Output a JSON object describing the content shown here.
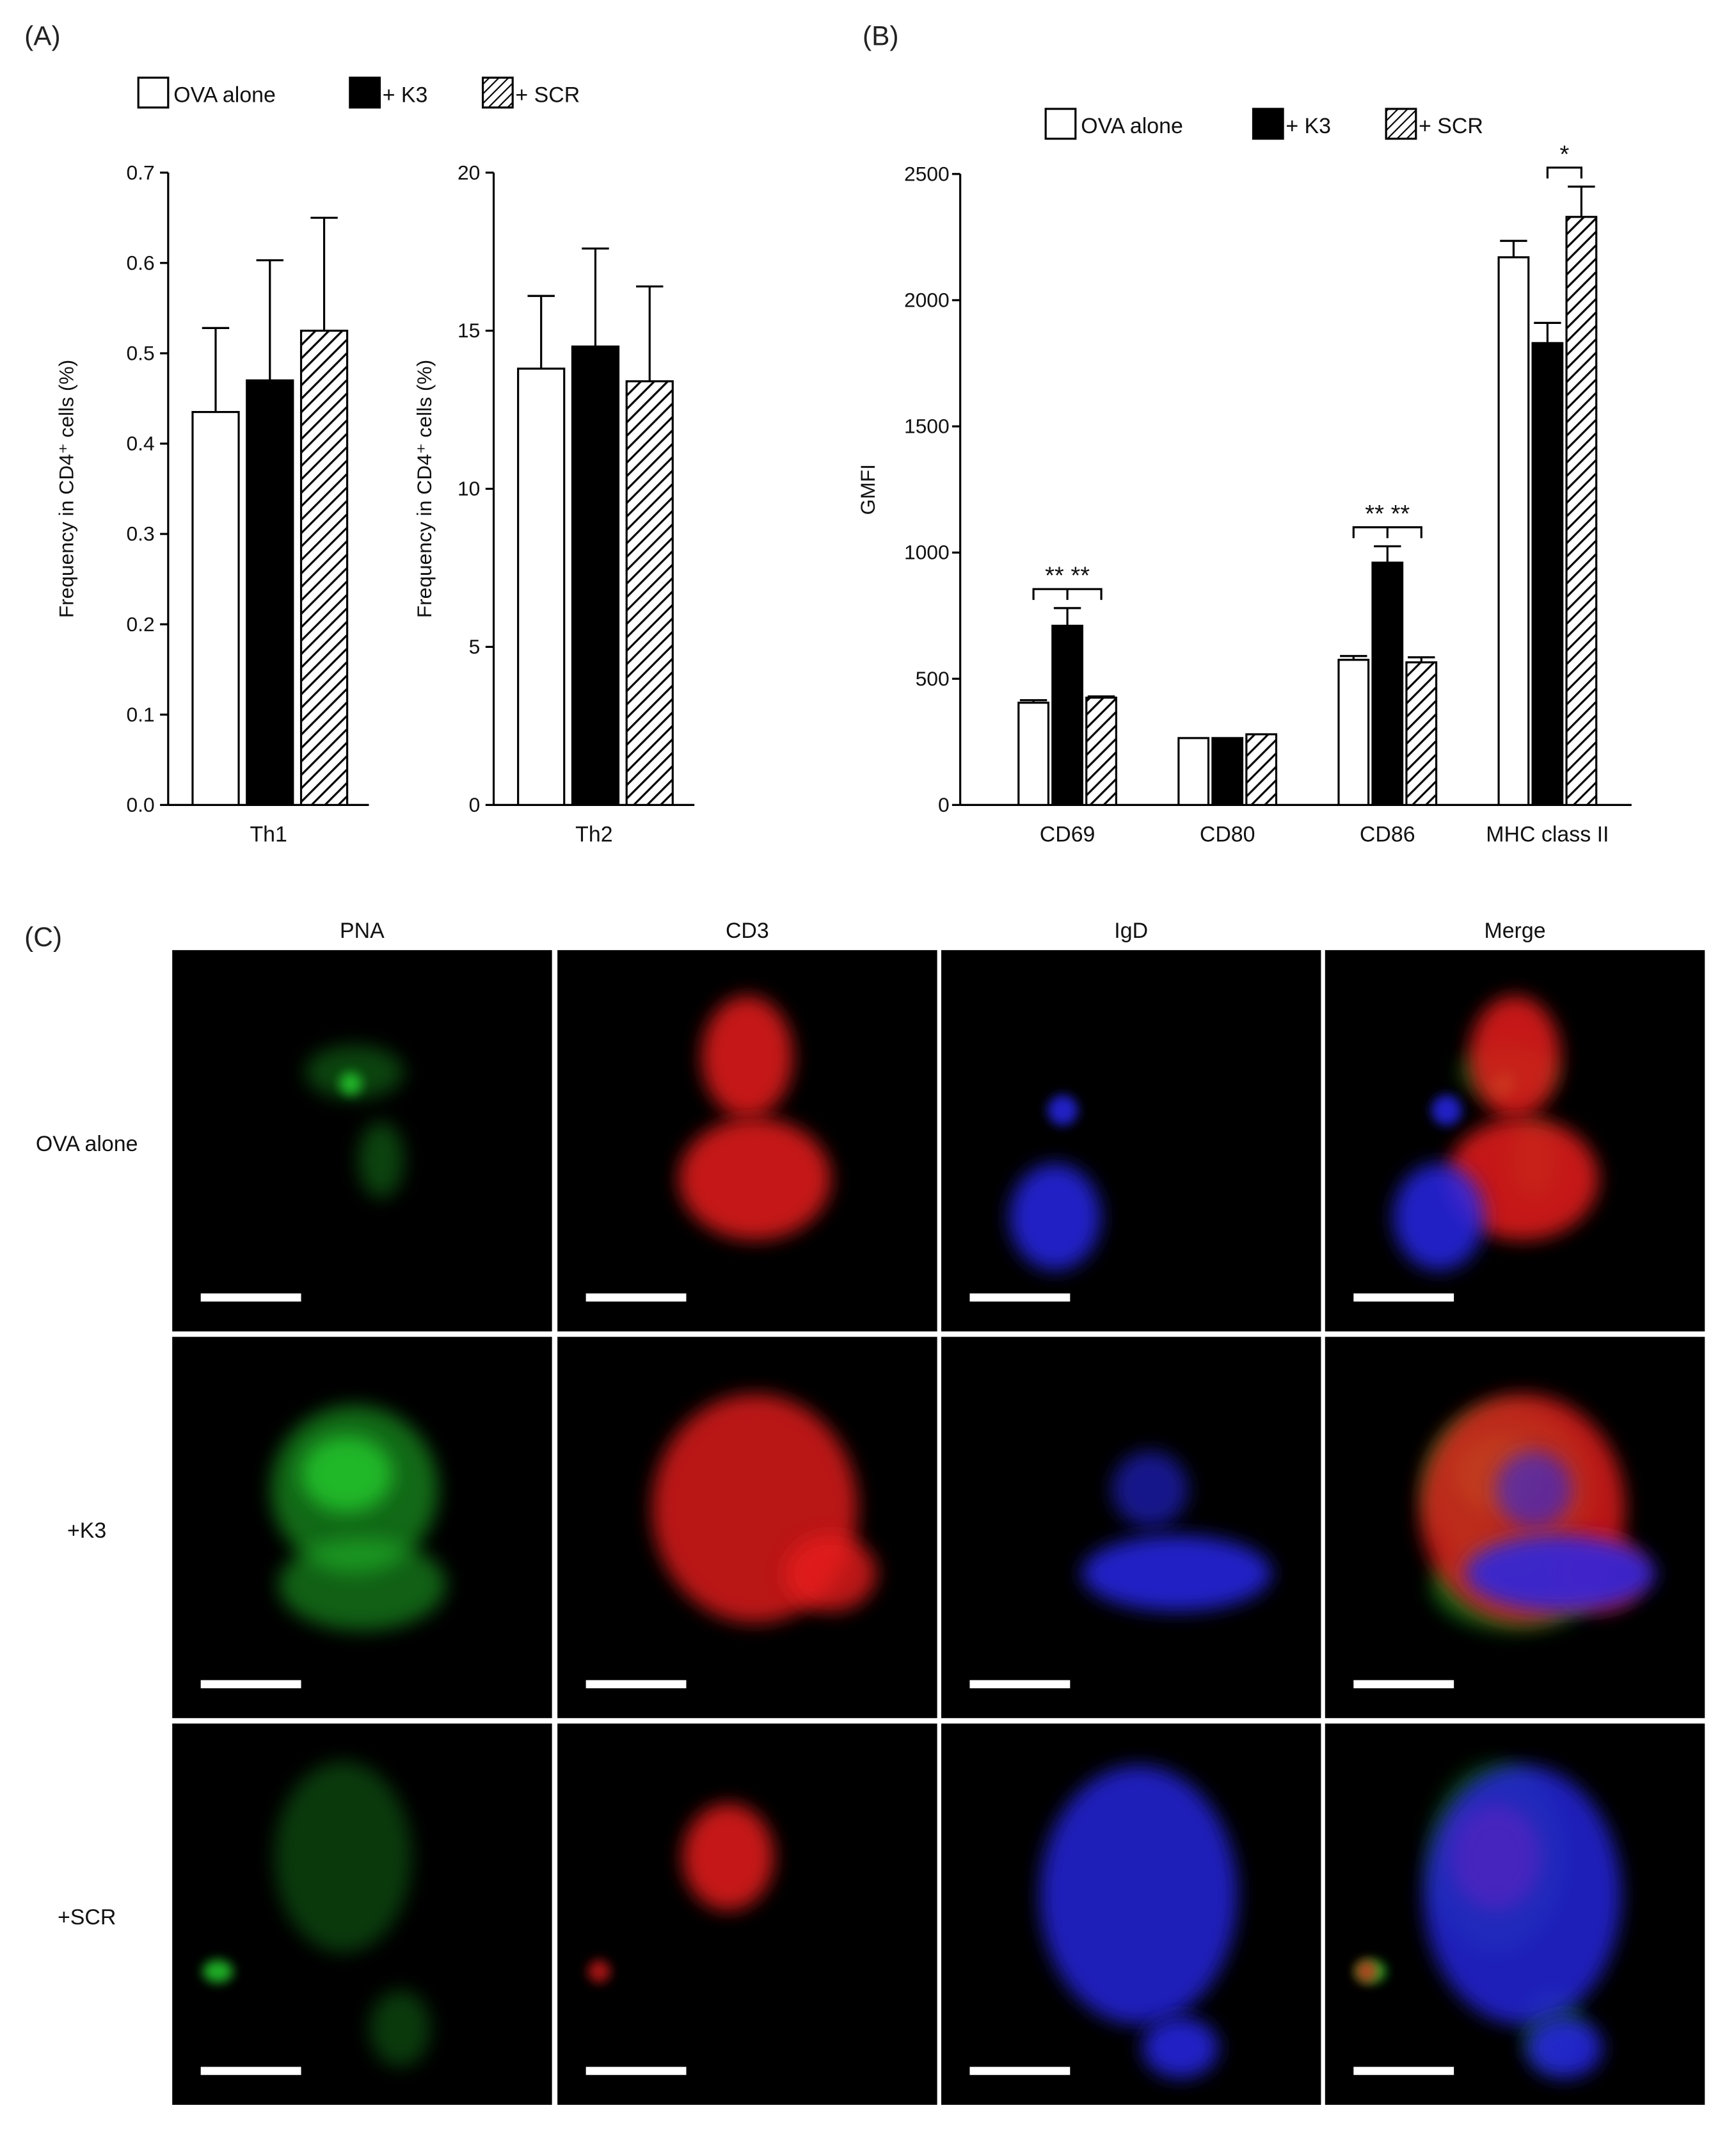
{
  "panels": {
    "a": {
      "label": "(A)"
    },
    "b": {
      "label": "(B)"
    },
    "c": {
      "label": "(C)"
    }
  },
  "legend": {
    "items": [
      "OVA alone",
      "+ K3",
      "+ SCR"
    ]
  },
  "colors": {
    "ova_alone": "#ffffff",
    "k3": "#000000",
    "scr_hatch": "#000000",
    "axis": "#000000",
    "panel_bg": "#000000",
    "pna": "#22c02a",
    "cd3": "#e81c1c",
    "igd": "#2626e8"
  },
  "chart_data": [
    {
      "type": "bar",
      "categories": [
        "Th1"
      ],
      "series": [
        {
          "name": "OVA alone",
          "values": [
            0.435
          ],
          "error": [
            0.093
          ]
        },
        {
          "name": "+ K3",
          "values": [
            0.47
          ],
          "error": [
            0.133
          ]
        },
        {
          "name": "+ SCR",
          "values": [
            0.525
          ],
          "error": [
            0.125
          ]
        }
      ],
      "ylabel": "Frequency in CD4⁺ cells (%)",
      "ylim": [
        0,
        0.7
      ],
      "yticks": [
        0.0,
        0.1,
        0.2,
        0.3,
        0.4,
        0.5,
        0.6,
        0.7
      ],
      "ytick_labels": [
        "0.0",
        "0.1",
        "0.2",
        "0.3",
        "0.4",
        "0.5",
        "0.6",
        "0.7"
      ],
      "grid": false
    },
    {
      "type": "bar",
      "categories": [
        "Th2"
      ],
      "series": [
        {
          "name": "OVA alone",
          "values": [
            13.8
          ],
          "error": [
            2.3
          ]
        },
        {
          "name": "+ K3",
          "values": [
            14.5
          ],
          "error": [
            3.1
          ]
        },
        {
          "name": "+ SCR",
          "values": [
            13.4
          ],
          "error": [
            3.0
          ]
        }
      ],
      "ylabel": "Frequency in CD4⁺ cells (%)",
      "ylim": [
        0,
        20
      ],
      "yticks": [
        0,
        5,
        10,
        15,
        20
      ],
      "ytick_labels": [
        "0",
        "5",
        "10",
        "15",
        "20"
      ],
      "grid": false
    },
    {
      "type": "bar",
      "categories": [
        "CD69",
        "CD80",
        "CD86",
        "MHC class II"
      ],
      "series": [
        {
          "name": "OVA alone",
          "values": [
            405,
            265,
            575,
            2170
          ],
          "error": [
            10,
            0,
            15,
            65
          ]
        },
        {
          "name": "+ K3",
          "values": [
            710,
            265,
            960,
            1830
          ],
          "error": [
            70,
            0,
            65,
            80
          ]
        },
        {
          "name": "+ SCR",
          "values": [
            425,
            280,
            565,
            2330
          ],
          "error": [
            5,
            0,
            20,
            120
          ]
        }
      ],
      "ylabel": "GMFI",
      "ylim": [
        0,
        2500
      ],
      "yticks": [
        0,
        500,
        1000,
        1500,
        2000,
        2500
      ],
      "ytick_labels": [
        "0",
        "500",
        "1000",
        "1500",
        "2000",
        "2500"
      ],
      "grid": false,
      "significance": [
        {
          "category": "CD69",
          "label": "** **"
        },
        {
          "category": "CD86",
          "label": "** **"
        },
        {
          "category": "MHC class II",
          "label": "*"
        }
      ]
    }
  ],
  "micrograph": {
    "columns": [
      "PNA",
      "CD3",
      "IgD",
      "Merge"
    ],
    "rows": [
      "OVA alone",
      "+K3",
      "+SCR"
    ]
  }
}
